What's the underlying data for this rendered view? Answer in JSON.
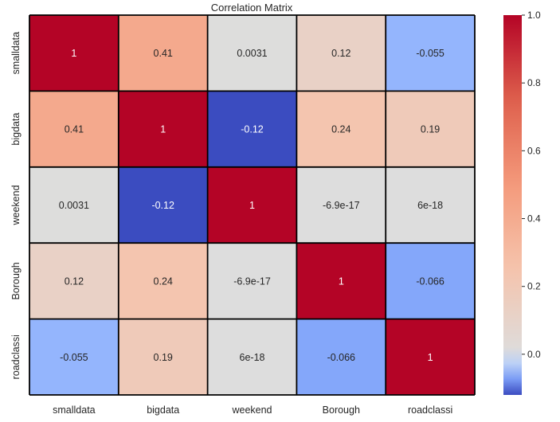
{
  "chart_data": {
    "type": "heatmap",
    "title": "Correlation Matrix",
    "xlabel": "",
    "ylabel": "",
    "x_labels": [
      "smalldata",
      "bigdata",
      "weekend",
      "Borough",
      "roadclassi"
    ],
    "y_labels": [
      "smalldata",
      "bigdata",
      "weekend",
      "Borough",
      "roadclassi"
    ],
    "values": [
      [
        1,
        0.41,
        0.0031,
        0.12,
        -0.055
      ],
      [
        0.41,
        1,
        -0.12,
        0.24,
        0.19
      ],
      [
        0.0031,
        -0.12,
        1,
        -6.9e-17,
        6e-18
      ],
      [
        0.12,
        0.24,
        -6.9e-17,
        1,
        -0.066
      ],
      [
        -0.055,
        0.19,
        6e-18,
        -0.066,
        1
      ]
    ],
    "annotations": [
      [
        "1",
        "0.41",
        "0.0031",
        "0.12",
        "-0.055"
      ],
      [
        "0.41",
        "1",
        "-0.12",
        "0.24",
        "0.19"
      ],
      [
        "0.0031",
        "-0.12",
        "1",
        "-6.9e-17",
        "6e-18"
      ],
      [
        "0.12",
        "0.24",
        "-6.9e-17",
        "1",
        "-0.066"
      ],
      [
        "-0.055",
        "0.19",
        "6e-18",
        "-0.066",
        "1"
      ]
    ],
    "colormap": "coolwarm",
    "vmin": -0.12,
    "vmax": 1,
    "colorbar": {
      "ticks": [
        0.0,
        0.2,
        0.4,
        0.6,
        0.8,
        1.0
      ],
      "tick_labels": [
        "0.0",
        "0.2",
        "0.4",
        "0.6",
        "0.8",
        "1.0"
      ]
    },
    "grid": false,
    "legend": "colorbar-right"
  }
}
